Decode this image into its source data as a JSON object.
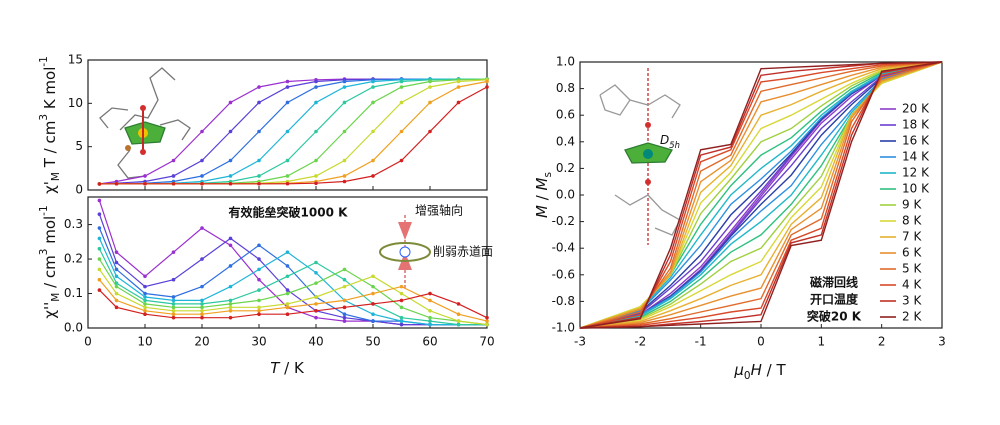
{
  "chart_data": [
    {
      "type": "line",
      "ylabel": [
        {
          "t": "χ'"
        },
        {
          "t": "M",
          "s": "sub"
        },
        {
          "t": " T / cm"
        },
        {
          "t": "3",
          "s": "sup"
        },
        {
          "t": " K mol"
        },
        {
          "t": "-1",
          "s": "sup"
        }
      ],
      "x": [
        2,
        5,
        10,
        15,
        20,
        25,
        30,
        35,
        40,
        45,
        50,
        55,
        60,
        65,
        70
      ],
      "xlim": [
        0,
        70
      ],
      "xticks": [
        0,
        10,
        20,
        30,
        40,
        50,
        60,
        70
      ],
      "xticklabels": false,
      "ylim": [
        0,
        15
      ],
      "yticks": [
        0,
        5,
        10,
        15
      ],
      "markers": true,
      "series": [
        {
          "color": "#9b30d0",
          "values": [
            0.7,
            0.98,
            1.62,
            3.4,
            6.75,
            10.1,
            11.88,
            12.52,
            12.72,
            12.8,
            12.8,
            12.8,
            12.8,
            12.8,
            12.8
          ]
        },
        {
          "color": "#5a3fd8",
          "values": [
            0.7,
            0.78,
            0.98,
            1.62,
            3.4,
            6.75,
            10.1,
            11.88,
            12.52,
            12.72,
            12.8,
            12.8,
            12.8,
            12.8,
            12.8
          ]
        },
        {
          "color": "#2f6fe0",
          "values": [
            0.7,
            0.72,
            0.78,
            0.98,
            1.62,
            3.4,
            6.75,
            10.1,
            11.88,
            12.52,
            12.72,
            12.8,
            12.8,
            12.8,
            12.8
          ]
        },
        {
          "color": "#1fb5d8",
          "values": [
            0.7,
            0.72,
            0.72,
            0.78,
            0.98,
            1.62,
            3.4,
            6.75,
            10.1,
            11.88,
            12.52,
            12.72,
            12.8,
            12.8,
            12.8
          ]
        },
        {
          "color": "#2cc9a0",
          "values": [
            0.7,
            0.72,
            0.72,
            0.72,
            0.78,
            0.98,
            1.62,
            3.4,
            6.75,
            10.1,
            11.88,
            12.52,
            12.72,
            12.8,
            12.8
          ]
        },
        {
          "color": "#6bd44c",
          "values": [
            0.7,
            0.72,
            0.72,
            0.72,
            0.72,
            0.78,
            0.98,
            1.62,
            3.4,
            6.75,
            10.1,
            11.88,
            12.52,
            12.72,
            12.8
          ]
        },
        {
          "color": "#c8d930",
          "values": [
            0.7,
            0.72,
            0.72,
            0.72,
            0.72,
            0.72,
            0.78,
            0.98,
            1.62,
            3.4,
            6.75,
            10.1,
            11.88,
            12.52,
            12.72
          ]
        },
        {
          "color": "#f0a020",
          "values": [
            0.7,
            0.72,
            0.72,
            0.72,
            0.72,
            0.72,
            0.72,
            0.78,
            0.98,
            1.62,
            3.4,
            6.75,
            10.1,
            11.88,
            12.52
          ]
        },
        {
          "color": "#d42020",
          "values": [
            0.7,
            0.72,
            0.72,
            0.72,
            0.72,
            0.72,
            0.72,
            0.72,
            0.78,
            0.98,
            1.62,
            3.4,
            6.75,
            10.1,
            11.88
          ]
        }
      ]
    },
    {
      "type": "line",
      "xlabel": [
        {
          "t": "T",
          "i": true
        },
        {
          "t": " / K"
        }
      ],
      "ylabel": [
        {
          "t": "χ''"
        },
        {
          "t": "M",
          "s": "sub"
        },
        {
          "t": " / cm"
        },
        {
          "t": "3",
          "s": "sup"
        },
        {
          "t": " mol"
        },
        {
          "t": "-1",
          "s": "sup"
        }
      ],
      "x": [
        2,
        5,
        10,
        15,
        20,
        25,
        30,
        35,
        40,
        45,
        50,
        55,
        60,
        65,
        70
      ],
      "xlim": [
        0,
        70
      ],
      "xticks": [
        0,
        10,
        20,
        30,
        40,
        50,
        60,
        70
      ],
      "ylim": [
        0,
        0.38
      ],
      "yticks": [
        {
          "value": 0,
          "label": "0.0"
        },
        0.1,
        0.2,
        0.3
      ],
      "markers": true,
      "annotations": [
        {
          "text": "有效能垒突破1000 K"
        },
        {
          "text": "增强轴向"
        },
        {
          "text": "削弱赤道面"
        }
      ],
      "series": [
        {
          "color": "#9b30d0",
          "values": [
            0.37,
            0.22,
            0.15,
            0.22,
            0.29,
            0.24,
            0.14,
            0.06,
            0.03,
            0.02,
            0.02,
            0.01,
            0.01,
            0.01,
            0.01
          ]
        },
        {
          "color": "#5a3fd8",
          "values": [
            0.33,
            0.19,
            0.12,
            0.14,
            0.2,
            0.26,
            0.2,
            0.11,
            0.05,
            0.03,
            0.02,
            0.01,
            0.01,
            0.01,
            0.01
          ]
        },
        {
          "color": "#2f6fe0",
          "values": [
            0.29,
            0.17,
            0.1,
            0.09,
            0.12,
            0.18,
            0.24,
            0.18,
            0.09,
            0.04,
            0.02,
            0.02,
            0.01,
            0.01,
            0.01
          ]
        },
        {
          "color": "#1fb5d8",
          "values": [
            0.26,
            0.15,
            0.09,
            0.08,
            0.08,
            0.12,
            0.17,
            0.22,
            0.16,
            0.08,
            0.04,
            0.02,
            0.01,
            0.01,
            0.01
          ]
        },
        {
          "color": "#2cc9a0",
          "values": [
            0.23,
            0.13,
            0.08,
            0.07,
            0.07,
            0.08,
            0.11,
            0.15,
            0.19,
            0.14,
            0.07,
            0.03,
            0.02,
            0.01,
            0.01
          ]
        },
        {
          "color": "#6bd44c",
          "values": [
            0.2,
            0.12,
            0.07,
            0.06,
            0.06,
            0.07,
            0.08,
            0.1,
            0.13,
            0.17,
            0.12,
            0.06,
            0.03,
            0.02,
            0.01
          ]
        },
        {
          "color": "#c8d930",
          "values": [
            0.17,
            0.1,
            0.06,
            0.05,
            0.05,
            0.06,
            0.06,
            0.07,
            0.09,
            0.12,
            0.15,
            0.1,
            0.05,
            0.02,
            0.01
          ]
        },
        {
          "color": "#f0a020",
          "values": [
            0.14,
            0.08,
            0.05,
            0.04,
            0.04,
            0.05,
            0.05,
            0.06,
            0.07,
            0.08,
            0.1,
            0.12,
            0.08,
            0.04,
            0.02
          ]
        },
        {
          "color": "#d42020",
          "values": [
            0.11,
            0.06,
            0.04,
            0.03,
            0.03,
            0.03,
            0.04,
            0.04,
            0.05,
            0.06,
            0.07,
            0.08,
            0.1,
            0.07,
            0.03
          ]
        }
      ]
    },
    {
      "type": "line",
      "xlabel": [
        {
          "t": "μ",
          "i": true
        },
        {
          "t": "0",
          "s": "sub"
        },
        {
          "t": "H",
          "i": true
        },
        {
          "t": " / T"
        }
      ],
      "ylabel": [
        {
          "t": "M",
          "i": true
        },
        {
          "t": " / "
        },
        {
          "t": "M",
          "i": true
        },
        {
          "t": "s",
          "s": "sub"
        }
      ],
      "x": [
        -3,
        -2,
        -1.5,
        -1,
        -0.5,
        0,
        0.5,
        1,
        1.5,
        2,
        3,
        2,
        1.5,
        1,
        0.5,
        0,
        -0.5,
        -1,
        -1.5,
        -2,
        -3
      ],
      "xlim": [
        -3,
        3
      ],
      "xticks": [
        -3,
        -2,
        -1,
        0,
        1,
        2,
        3
      ],
      "ylim": [
        -1,
        1
      ],
      "yticks": [
        {
          "value": -1,
          "label": "-1.0"
        },
        -0.8,
        -0.6,
        -0.4,
        -0.2,
        {
          "value": 0,
          "label": "0.0"
        },
        0.2,
        0.4,
        0.6,
        0.8,
        {
          "value": 1,
          "label": "1.0"
        }
      ],
      "markers": false,
      "legend": "right",
      "annotations": [
        {
          "parts": [
            {
              "t": "D",
              "i": true
            },
            {
              "t": "5h",
              "s": "sub",
              "i": true
            }
          ]
        },
        {
          "text": "磁滞回线"
        },
        {
          "text": "开口温度"
        },
        {
          "text": "突破20 K"
        }
      ],
      "series": [
        {
          "name": "20 K",
          "color": "#8b3fc8",
          "values": [
            -1,
            -0.9,
            -0.76,
            -0.56,
            -0.29,
            -0.01,
            0.27,
            0.54,
            0.74,
            0.9,
            1,
            0.9,
            0.76,
            0.56,
            0.29,
            0.01,
            -0.27,
            -0.54,
            -0.74,
            -0.9,
            -1
          ]
        },
        {
          "name": "18 K",
          "color": "#6a3fd0",
          "values": [
            -1,
            -0.9,
            -0.76,
            -0.57,
            -0.3,
            -0.03,
            0.22,
            0.5,
            0.7,
            0.89,
            1,
            0.9,
            0.76,
            0.57,
            0.3,
            0.03,
            -0.22,
            -0.5,
            -0.7,
            -0.89,
            -1
          ]
        },
        {
          "name": "16 K",
          "color": "#2a3fa8",
          "values": [
            -1,
            -0.9,
            -0.76,
            -0.57,
            -0.31,
            -0.07,
            0.15,
            0.45,
            0.68,
            0.88,
            1,
            0.9,
            0.76,
            0.57,
            0.31,
            0.07,
            -0.15,
            -0.45,
            -0.68,
            -0.88,
            -1
          ]
        },
        {
          "name": "14 K",
          "color": "#2f8fe0",
          "values": [
            -1,
            -0.9,
            -0.77,
            -0.58,
            -0.33,
            -0.12,
            0.07,
            0.38,
            0.64,
            0.87,
            1,
            0.9,
            0.77,
            0.58,
            0.33,
            0.12,
            -0.07,
            -0.38,
            -0.64,
            -0.87,
            -1
          ]
        },
        {
          "name": "12 K",
          "color": "#20b8c8",
          "values": [
            -1,
            -0.91,
            -0.78,
            -0.6,
            -0.37,
            -0.2,
            0,
            0.3,
            0.62,
            0.86,
            1,
            0.91,
            0.78,
            0.6,
            0.37,
            0.2,
            0,
            -0.3,
            -0.62,
            -0.86,
            -1
          ]
        },
        {
          "name": "10 K",
          "color": "#30c080",
          "values": [
            -1,
            -0.92,
            -0.8,
            -0.63,
            -0.43,
            -0.3,
            -0.07,
            0.22,
            0.6,
            0.85,
            1,
            0.92,
            0.8,
            0.63,
            0.43,
            0.3,
            0.07,
            -0.22,
            -0.6,
            -0.85,
            -1
          ]
        },
        {
          "name": "9 K",
          "color": "#a0d040",
          "values": [
            -1,
            -0.93,
            -0.82,
            -0.67,
            -0.5,
            -0.4,
            -0.12,
            0.14,
            0.6,
            0.84,
            1,
            0.93,
            0.82,
            0.67,
            0.5,
            0.4,
            0.12,
            -0.14,
            -0.6,
            -0.84,
            -1
          ]
        },
        {
          "name": "8 K",
          "color": "#d8d838",
          "values": [
            -1,
            -0.94,
            -0.84,
            -0.72,
            -0.6,
            -0.5,
            -0.17,
            0.06,
            0.6,
            0.84,
            1,
            0.94,
            0.84,
            0.72,
            0.6,
            0.5,
            0.17,
            -0.06,
            -0.6,
            -0.84,
            -1
          ]
        },
        {
          "name": "7 K",
          "color": "#e8b030",
          "values": [
            -1,
            -0.95,
            -0.87,
            -0.78,
            -0.68,
            -0.6,
            -0.22,
            -0.02,
            0.6,
            0.85,
            1,
            0.95,
            0.87,
            0.78,
            0.68,
            0.6,
            0.22,
            0.02,
            -0.6,
            -0.85,
            -1
          ]
        },
        {
          "name": "6 K",
          "color": "#e89030",
          "values": [
            -1,
            -0.96,
            -0.9,
            -0.83,
            -0.76,
            -0.7,
            -0.26,
            -0.1,
            0.58,
            0.86,
            1,
            0.96,
            0.9,
            0.83,
            0.76,
            0.7,
            0.26,
            0.1,
            -0.58,
            -0.86,
            -1
          ]
        },
        {
          "name": "5 K",
          "color": "#e06a2a",
          "values": [
            -1,
            -0.97,
            -0.93,
            -0.88,
            -0.83,
            -0.78,
            -0.3,
            -0.18,
            0.55,
            0.88,
            1,
            0.97,
            0.93,
            0.88,
            0.83,
            0.78,
            0.3,
            0.18,
            -0.55,
            -0.88,
            -1
          ]
        },
        {
          "name": "4 K",
          "color": "#d84a2a",
          "values": [
            -1,
            -0.98,
            -0.95,
            -0.92,
            -0.88,
            -0.85,
            -0.34,
            -0.25,
            0.5,
            0.9,
            1,
            0.98,
            0.95,
            0.92,
            0.88,
            0.85,
            0.34,
            0.25,
            -0.5,
            -0.9,
            -1
          ]
        },
        {
          "name": "3 K",
          "color": "#c03028",
          "values": [
            -1,
            -0.99,
            -0.97,
            -0.95,
            -0.93,
            -0.9,
            -0.36,
            -0.3,
            0.45,
            0.92,
            1,
            0.99,
            0.97,
            0.95,
            0.93,
            0.9,
            0.36,
            0.3,
            -0.45,
            -0.92,
            -1
          ]
        },
        {
          "name": "2 K",
          "color": "#902020",
          "values": [
            -1,
            -0.99,
            -0.98,
            -0.97,
            -0.96,
            -0.95,
            -0.38,
            -0.34,
            0.4,
            0.93,
            1,
            0.99,
            0.98,
            0.97,
            0.96,
            0.95,
            0.38,
            0.34,
            -0.4,
            -0.93,
            -1
          ]
        }
      ]
    }
  ]
}
